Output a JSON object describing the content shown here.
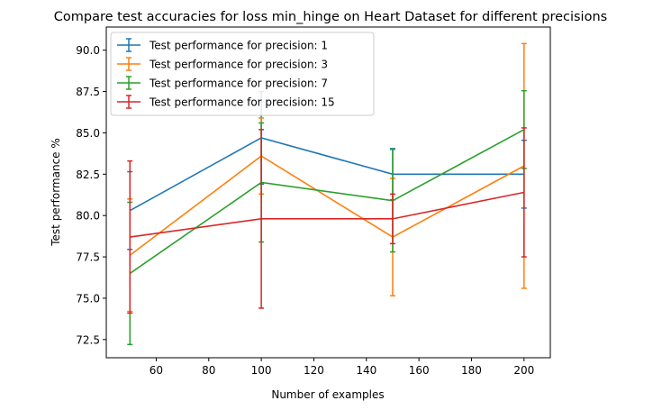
{
  "chart_data": {
    "type": "line",
    "title": "Compare test accuracies for loss min_hinge on Heart Dataset for different precisions",
    "xlabel": "Number of examples",
    "ylabel": "Test performance %",
    "xlim": [
      41,
      210
    ],
    "ylim": [
      71.4,
      91.4
    ],
    "x_ticks": [
      60,
      80,
      100,
      120,
      140,
      160,
      180,
      200
    ],
    "x_tick_labels": [
      "60",
      "80",
      "100",
      "120",
      "140",
      "160",
      "180",
      "200"
    ],
    "y_ticks": [
      72.5,
      75.0,
      77.5,
      80.0,
      82.5,
      85.0,
      87.5,
      90.0
    ],
    "y_tick_labels": [
      "72.5",
      "75.0",
      "77.5",
      "80.0",
      "82.5",
      "85.0",
      "87.5",
      "90.0"
    ],
    "grid": false,
    "legend_position": "upper-left",
    "x": [
      50,
      100,
      150,
      200
    ],
    "series": [
      {
        "name": "Test performance for precision: 1",
        "color": "#1f77b4",
        "values": [
          80.3,
          84.7,
          82.5,
          82.5
        ],
        "errors": [
          2.35,
          2.8,
          1.55,
          2.05
        ]
      },
      {
        "name": "Test performance for precision: 3",
        "color": "#ff7f0e",
        "values": [
          77.6,
          83.6,
          78.7,
          83.0
        ],
        "errors": [
          3.4,
          2.3,
          3.55,
          7.4
        ]
      },
      {
        "name": "Test performance for precision: 7",
        "color": "#2ca02c",
        "values": [
          76.5,
          82.0,
          80.9,
          85.2
        ],
        "errors": [
          4.3,
          3.6,
          3.1,
          2.35
        ]
      },
      {
        "name": "Test performance for precision: 15",
        "color": "#d62728",
        "values": [
          78.7,
          79.8,
          79.8,
          81.4
        ],
        "errors": [
          4.6,
          5.4,
          1.5,
          3.9
        ]
      }
    ]
  }
}
